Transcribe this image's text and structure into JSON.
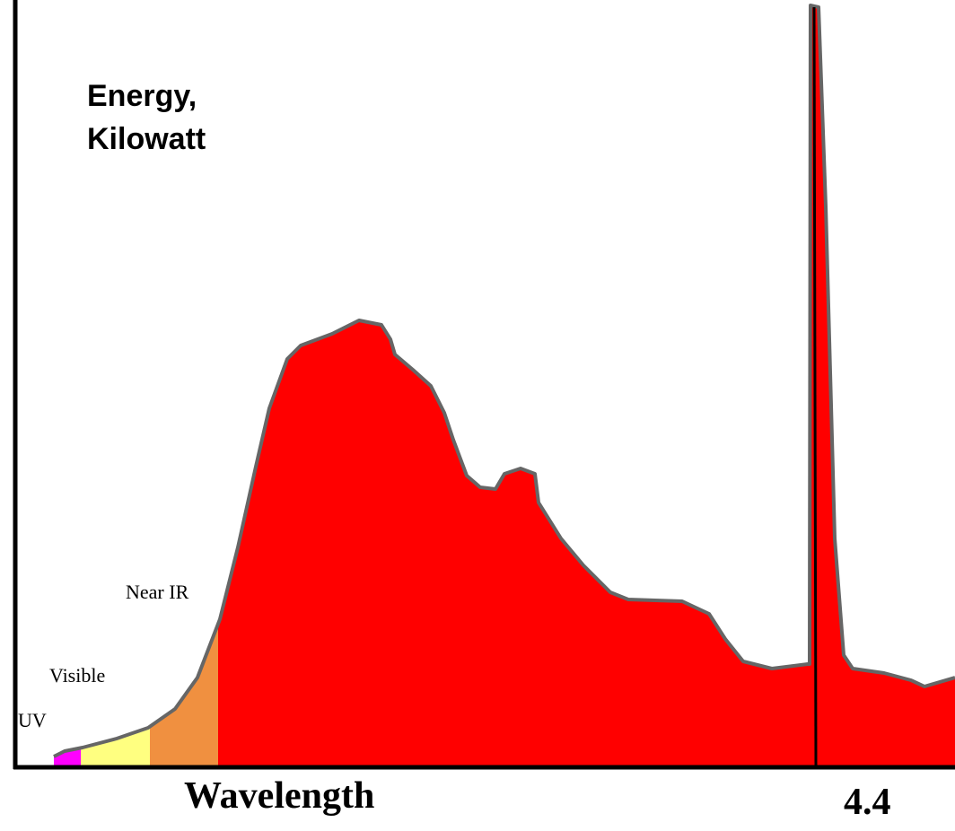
{
  "y_label": {
    "lines": [
      "Energy,",
      "Kilowatt"
    ]
  },
  "regions": [
    "UV",
    "Visible",
    "Near IR"
  ],
  "x_label": "Wavelength",
  "slide_number": "4.4"
}
